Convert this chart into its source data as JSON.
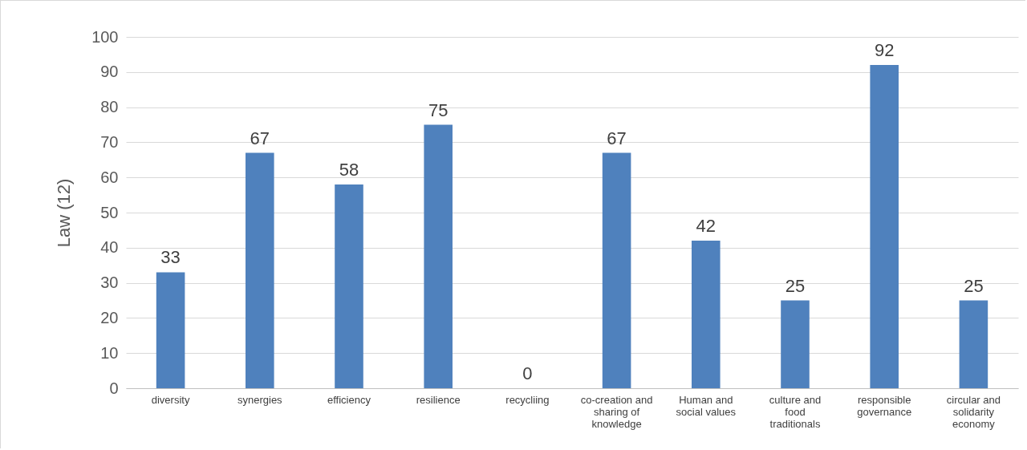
{
  "chart_data": {
    "type": "bar",
    "ylabel": "Law (12)",
    "categories": [
      "diversity",
      "synergies",
      "efficiency",
      "resilience",
      "recycliing",
      "co-creation and sharing of knowledge",
      "Human and social values",
      "culture and food traditionals",
      "responsible governance",
      "circular and solidarity economy"
    ],
    "series": [
      {
        "color": "#4f81bd",
        "values": [
          33,
          67,
          58,
          75,
          0,
          67,
          42,
          25,
          92,
          25
        ]
      }
    ],
    "ylim": [
      0,
      100
    ],
    "yticks": [
      0,
      10,
      20,
      30,
      40,
      50,
      60,
      70,
      80,
      90,
      100
    ],
    "grid": "y",
    "data_labels": true
  }
}
